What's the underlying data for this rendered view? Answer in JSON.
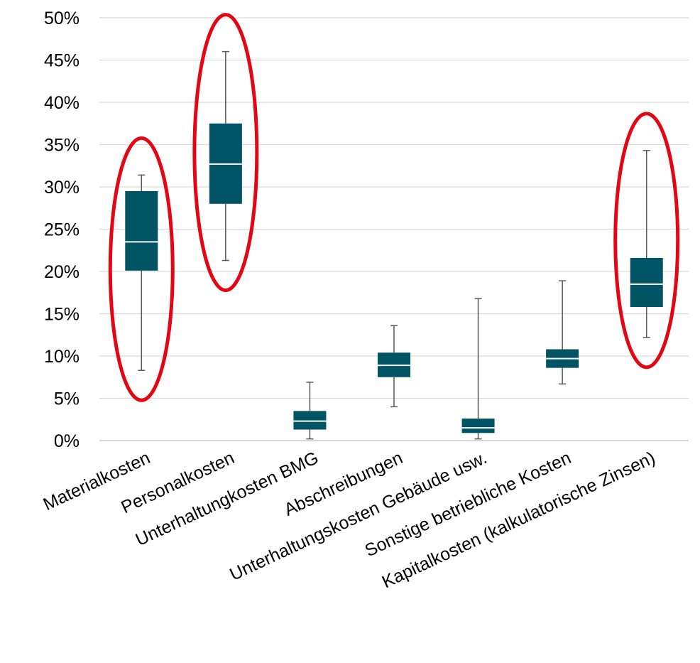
{
  "chart_data": {
    "type": "boxplot",
    "title": "",
    "xlabel": "",
    "ylabel": "",
    "ylim": [
      0,
      50
    ],
    "ytick_step": 5,
    "ytick_labels": [
      "0%",
      "5%",
      "10%",
      "15%",
      "20%",
      "25%",
      "30%",
      "35%",
      "40%",
      "45%",
      "50%"
    ],
    "grid": "horizontal",
    "legend": "none",
    "box_color": "#005464",
    "median_color": "#ffffff",
    "whisker_color": "#595959",
    "highlight_color": "#e30613",
    "categories": [
      "Materialkosten",
      "Personalkosten",
      "Unterhaltungkosten BMG",
      "Abschreibungen",
      "Unterhaltungskosten Gebäude usw.",
      "Sonstige betriebliche Kosten",
      "Kapitalkosten (kalkulatorische Zinsen)"
    ],
    "boxes": [
      {
        "min": 8.3,
        "q1": 20.1,
        "median": 23.5,
        "q3": 29.5,
        "max": 31.4,
        "highlighted": true
      },
      {
        "min": 21.3,
        "q1": 28.0,
        "median": 32.7,
        "q3": 37.5,
        "max": 46.0,
        "highlighted": true
      },
      {
        "min": 0.2,
        "q1": 1.3,
        "median": 2.3,
        "q3": 3.5,
        "max": 6.9,
        "highlighted": false
      },
      {
        "min": 4.0,
        "q1": 7.5,
        "median": 8.9,
        "q3": 10.4,
        "max": 13.6,
        "highlighted": false
      },
      {
        "min": 0.2,
        "q1": 0.9,
        "median": 1.5,
        "q3": 2.6,
        "max": 16.8,
        "highlighted": false
      },
      {
        "min": 6.7,
        "q1": 8.6,
        "median": 9.7,
        "q3": 10.8,
        "max": 18.9,
        "highlighted": false
      },
      {
        "min": 12.2,
        "q1": 15.8,
        "median": 18.5,
        "q3": 21.6,
        "max": 34.3,
        "highlighted": true
      }
    ]
  }
}
